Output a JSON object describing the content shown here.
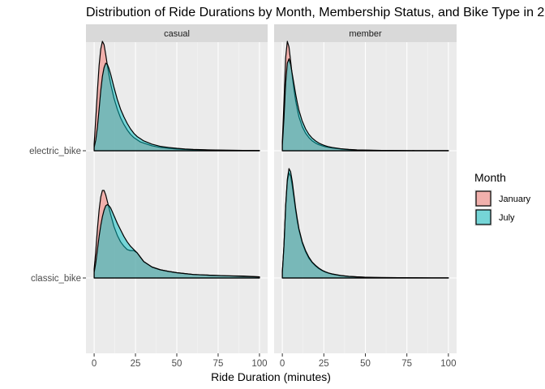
{
  "chart_data": {
    "type": "ridgeline-density",
    "title": "Distribution of Ride Durations by Month, Membership Status, and Bike Type in 2",
    "xlabel": "Ride Duration (minutes)",
    "ylabel": "",
    "xlim": [
      0,
      100
    ],
    "x_ticks": [
      0,
      25,
      50,
      75,
      100
    ],
    "facets": [
      "casual",
      "member"
    ],
    "rows": [
      "electric_bike",
      "classic_bike"
    ],
    "legend": {
      "title": "Month",
      "placement": "right",
      "entries": [
        {
          "label": "January",
          "color": "#F8766D"
        },
        {
          "label": "July",
          "color": "#00BFC4"
        }
      ]
    },
    "x": [
      0,
      1,
      2,
      3,
      4,
      5,
      6,
      7,
      8,
      9,
      10,
      12,
      14,
      16,
      18,
      20,
      22,
      24,
      26,
      28,
      30,
      35,
      40,
      45,
      50,
      55,
      60,
      70,
      80,
      90,
      100
    ],
    "panels": [
      {
        "facet": "casual",
        "row": "electric_bike",
        "series": [
          {
            "name": "January",
            "values": [
              0.06,
              0.3,
              0.55,
              0.78,
              0.93,
              1.0,
              0.97,
              0.88,
              0.78,
              0.69,
              0.61,
              0.48,
              0.38,
              0.3,
              0.24,
              0.19,
              0.15,
              0.12,
              0.1,
              0.08,
              0.07,
              0.045,
              0.03,
              0.022,
              0.016,
              0.012,
              0.009,
              0.006,
              0.004,
              0.003,
              0.002
            ]
          },
          {
            "name": "July",
            "values": [
              0.03,
              0.1,
              0.22,
              0.38,
              0.55,
              0.68,
              0.76,
              0.8,
              0.79,
              0.75,
              0.7,
              0.58,
              0.47,
              0.38,
              0.31,
              0.25,
              0.2,
              0.16,
              0.13,
              0.11,
              0.09,
              0.06,
              0.04,
              0.03,
              0.022,
              0.016,
              0.012,
              0.008,
              0.005,
              0.003,
              0.002
            ]
          }
        ]
      },
      {
        "facet": "member",
        "row": "electric_bike",
        "series": [
          {
            "name": "January",
            "values": [
              0.08,
              0.45,
              0.85,
              1.0,
              0.95,
              0.82,
              0.68,
              0.56,
              0.46,
              0.38,
              0.31,
              0.22,
              0.16,
              0.12,
              0.09,
              0.07,
              0.055,
              0.045,
              0.036,
              0.03,
              0.025,
              0.016,
              0.01,
              0.007,
              0.005,
              0.004,
              0.003,
              0.002,
              0.0015,
              0.001,
              0.001
            ]
          },
          {
            "name": "July",
            "values": [
              0.05,
              0.3,
              0.62,
              0.8,
              0.84,
              0.79,
              0.7,
              0.61,
              0.52,
              0.44,
              0.37,
              0.27,
              0.2,
              0.15,
              0.115,
              0.09,
              0.07,
              0.056,
              0.045,
              0.036,
              0.03,
              0.019,
              0.012,
              0.008,
              0.006,
              0.004,
              0.003,
              0.002,
              0.0015,
              0.001,
              0.001
            ]
          }
        ]
      },
      {
        "facet": "casual",
        "row": "classic_bike",
        "series": [
          {
            "name": "January",
            "values": [
              0.08,
              0.25,
              0.45,
              0.62,
              0.74,
              0.8,
              0.8,
              0.76,
              0.7,
              0.64,
              0.58,
              0.47,
              0.39,
              0.33,
              0.29,
              0.26,
              0.25,
              0.25,
              0.23,
              0.19,
              0.15,
              0.1,
              0.075,
              0.06,
              0.048,
              0.04,
              0.032,
              0.025,
              0.02,
              0.018,
              0.01
            ]
          },
          {
            "name": "July",
            "values": [
              0.05,
              0.14,
              0.26,
              0.38,
              0.48,
              0.56,
              0.62,
              0.66,
              0.67,
              0.66,
              0.64,
              0.57,
              0.5,
              0.44,
              0.38,
              0.33,
              0.29,
              0.26,
              0.23,
              0.19,
              0.15,
              0.1,
              0.075,
              0.06,
              0.048,
              0.04,
              0.032,
              0.025,
              0.02,
              0.015,
              0.01
            ]
          }
        ]
      },
      {
        "facet": "member",
        "row": "classic_bike",
        "series": [
          {
            "name": "January",
            "values": [
              0.05,
              0.3,
              0.65,
              0.88,
              0.96,
              0.93,
              0.84,
              0.73,
              0.62,
              0.52,
              0.44,
              0.32,
              0.24,
              0.18,
              0.14,
              0.11,
              0.085,
              0.067,
              0.053,
              0.043,
              0.035,
              0.022,
              0.014,
              0.01,
              0.007,
              0.005,
              0.004,
              0.003,
              0.002,
              0.0015,
              0.001
            ]
          },
          {
            "name": "July",
            "values": [
              0.05,
              0.3,
              0.66,
              0.9,
              1.0,
              0.97,
              0.88,
              0.76,
              0.64,
              0.54,
              0.45,
              0.33,
              0.25,
              0.19,
              0.145,
              0.115,
              0.09,
              0.07,
              0.056,
              0.045,
              0.037,
              0.023,
              0.015,
              0.01,
              0.007,
              0.005,
              0.004,
              0.003,
              0.002,
              0.0015,
              0.001
            ]
          }
        ]
      }
    ],
    "grid": true
  }
}
